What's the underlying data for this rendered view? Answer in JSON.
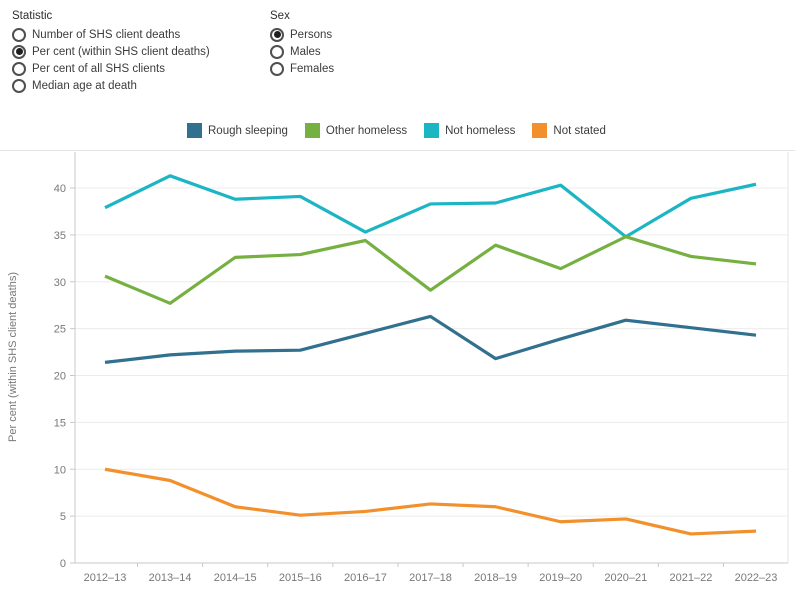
{
  "controls": {
    "statistic": {
      "label": "Statistic",
      "options": [
        {
          "label": "Number of SHS client deaths",
          "selected": false
        },
        {
          "label": "Per cent (within SHS client deaths)",
          "selected": true
        },
        {
          "label": "Per cent of all SHS clients",
          "selected": false
        },
        {
          "label": "Median age at death",
          "selected": false
        }
      ]
    },
    "sex": {
      "label": "Sex",
      "options": [
        {
          "label": "Persons",
          "selected": true
        },
        {
          "label": "Males",
          "selected": false
        },
        {
          "label": "Females",
          "selected": false
        }
      ]
    }
  },
  "chart_data": {
    "type": "line",
    "title": "",
    "xlabel": "",
    "ylabel": "Per cent (within SHS client deaths)",
    "ylim": [
      0,
      40
    ],
    "ytick_step": 5,
    "yticks": [
      0,
      5,
      10,
      15,
      20,
      25,
      30,
      35,
      40
    ],
    "grid": true,
    "legend_position": "top",
    "categories": [
      "2012–13",
      "2013–14",
      "2014–15",
      "2015–16",
      "2016–17",
      "2017–18",
      "2018–19",
      "2019–20",
      "2020–21",
      "2021–22",
      "2022–23"
    ],
    "series": [
      {
        "name": "Rough sleeping",
        "color": "#31708E",
        "values": [
          21.4,
          22.2,
          22.6,
          22.7,
          24.5,
          26.3,
          21.8,
          23.9,
          25.9,
          25.1,
          24.3
        ]
      },
      {
        "name": "Other homeless",
        "color": "#76B041",
        "values": [
          30.6,
          27.7,
          32.6,
          32.9,
          34.4,
          29.1,
          33.9,
          31.4,
          34.8,
          32.7,
          31.9
        ]
      },
      {
        "name": "Not homeless",
        "color": "#1CB5C4",
        "values": [
          37.9,
          41.3,
          38.8,
          39.1,
          35.3,
          38.3,
          38.4,
          40.3,
          34.8,
          38.9,
          40.4
        ]
      },
      {
        "name": "Not stated",
        "color": "#F2902B",
        "values": [
          10.0,
          8.8,
          6.0,
          5.1,
          5.5,
          6.3,
          6.0,
          4.4,
          4.7,
          3.1,
          3.4
        ]
      }
    ],
    "colors": {
      "axis_line": "#c9c9c9",
      "gridline": "#ececec",
      "plot_border": "#e4e4e4",
      "tick_label": "#787878"
    }
  }
}
